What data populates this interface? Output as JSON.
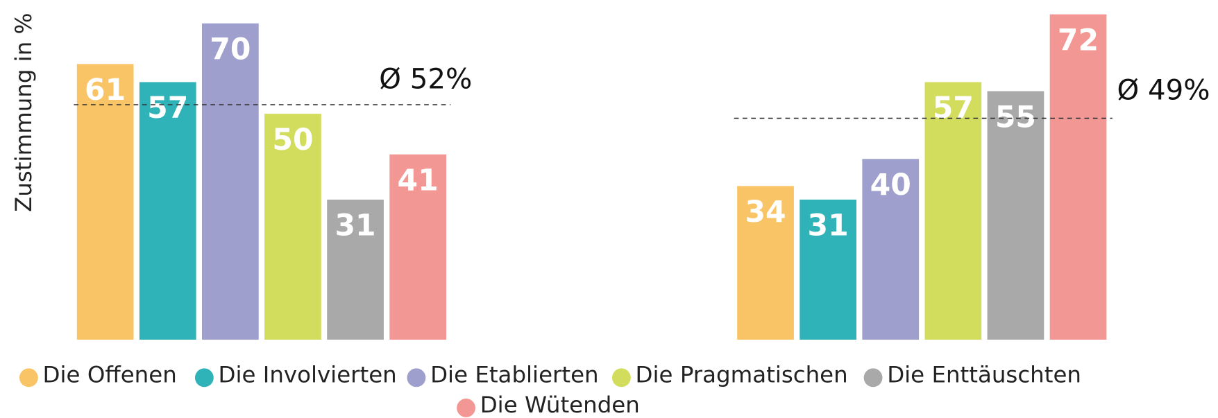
{
  "chart_data": {
    "type": "bar",
    "ylabel": "Zustimmung in %",
    "categories": [
      null,
      null
    ],
    "series": [
      {
        "name": "Die Offenen",
        "color": "#f9c466",
        "values": [
          61,
          34
        ]
      },
      {
        "name": "Die Involvierten",
        "color": "#30b3b8",
        "values": [
          57,
          31
        ]
      },
      {
        "name": "Die Etablierten",
        "color": "#9e9fcc",
        "values": [
          70,
          40
        ]
      },
      {
        "name": "Die Pragmatischen",
        "color": "#d2dd5e",
        "values": [
          50,
          57
        ]
      },
      {
        "name": "Die Enttäuschten",
        "color": "#aaa9a9",
        "values": [
          31,
          55
        ]
      },
      {
        "name": "Die Wütenden",
        "color": "#f29794",
        "values": [
          41,
          72
        ]
      }
    ],
    "averages": [
      {
        "value": 52,
        "label": "Ø 52%"
      },
      {
        "value": 49,
        "label": "Ø 49%"
      }
    ],
    "ylim": [
      0,
      75
    ]
  }
}
